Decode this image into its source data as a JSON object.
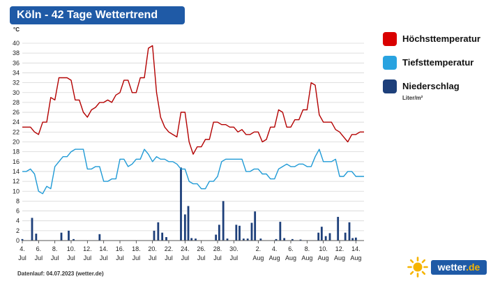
{
  "title": "Köln - 42 Tage Wettertrend",
  "unit_label": "°C",
  "footer": "Datenlauf: 04.07.2023 (wetter.de)",
  "logo": {
    "text": "wetter",
    "suffix": ".de"
  },
  "legend": [
    {
      "label": "Höchsttemperatur",
      "color": "#d90000",
      "sub": ""
    },
    {
      "label": "Tiefsttemperatur",
      "color": "#29a3e0",
      "sub": ""
    },
    {
      "label": "Niederschlag",
      "color": "#1d3f7a",
      "sub": "Liter/m²"
    }
  ],
  "colors": {
    "max": "#b30000",
    "min": "#1f9ad6",
    "rain": "#1d3f7a",
    "title_bg": "#1f5aa6"
  },
  "chart_data": {
    "type": "line",
    "title": "Köln - 42 Tage Wettertrend",
    "ylabel": "°C",
    "ylim": [
      0,
      40
    ],
    "yticks": [
      0,
      2,
      4,
      6,
      8,
      10,
      12,
      14,
      16,
      18,
      20,
      22,
      24,
      26,
      28,
      30,
      32,
      34,
      36,
      38,
      40
    ],
    "grid": true,
    "legend_position": "right",
    "xlim": [
      4,
      46
    ],
    "x_ticks": [
      {
        "day": 4,
        "label": "4.",
        "month": "Jul"
      },
      {
        "day": 6,
        "label": "6.",
        "month": "Jul"
      },
      {
        "day": 8,
        "label": "8.",
        "month": "Jul"
      },
      {
        "day": 10,
        "label": "10.",
        "month": "Jul"
      },
      {
        "day": 12,
        "label": "12.",
        "month": "Jul"
      },
      {
        "day": 14,
        "label": "14.",
        "month": "Jul"
      },
      {
        "day": 16,
        "label": "16.",
        "month": "Jul"
      },
      {
        "day": 18,
        "label": "18.",
        "month": "Jul"
      },
      {
        "day": 20,
        "label": "20.",
        "month": "Jul"
      },
      {
        "day": 22,
        "label": "22.",
        "month": "Jul"
      },
      {
        "day": 24,
        "label": "24.",
        "month": "Jul"
      },
      {
        "day": 26,
        "label": "26.",
        "month": "Jul"
      },
      {
        "day": 28,
        "label": "28.",
        "month": "Jul"
      },
      {
        "day": 30,
        "label": "30.",
        "month": "Jul"
      },
      {
        "day": 33,
        "label": "2.",
        "month": "Aug"
      },
      {
        "day": 35,
        "label": "4.",
        "month": "Aug"
      },
      {
        "day": 37,
        "label": "6.",
        "month": "Aug"
      },
      {
        "day": 39,
        "label": "8.",
        "month": "Aug"
      },
      {
        "day": 41,
        "label": "10.",
        "month": "Aug"
      },
      {
        "day": 43,
        "label": "12.",
        "month": "Aug"
      },
      {
        "day": 45,
        "label": "14.",
        "month": "Aug"
      }
    ],
    "series": [
      {
        "name": "Höchsttemperatur",
        "x": [
          4,
          4.5,
          5,
          5.5,
          6,
          6.5,
          7,
          7.5,
          8,
          8.5,
          9,
          9.5,
          10,
          10.5,
          11,
          11.5,
          12,
          12.5,
          13,
          13.5,
          14,
          14.5,
          15,
          15.5,
          16,
          16.5,
          17,
          17.5,
          18,
          18.5,
          19,
          19.5,
          20,
          20.5,
          21,
          21.5,
          22,
          22.5,
          23,
          23.5,
          24,
          24.5,
          25,
          25.5,
          26,
          26.5,
          27,
          27.5,
          28,
          28.5,
          29,
          29.5,
          30,
          30.5,
          31,
          31.5,
          32,
          32.5,
          33,
          33.5,
          34,
          34.5,
          35,
          35.5,
          36,
          36.5,
          37,
          37.5,
          38,
          38.5,
          39,
          39.5,
          40,
          40.5,
          41,
          41.5,
          42,
          42.5,
          43,
          43.5,
          44,
          44.5,
          45,
          45.5,
          46
        ],
        "values": [
          23,
          23,
          23,
          22,
          21.5,
          24,
          24,
          29,
          28.5,
          33,
          33,
          33,
          32.5,
          28.5,
          28.5,
          26,
          25,
          26.5,
          27,
          28,
          28,
          28.5,
          28,
          29.5,
          30,
          32.5,
          32.5,
          30,
          30,
          33,
          33,
          39,
          39.5,
          30,
          25,
          23,
          22,
          21.5,
          21,
          26,
          26,
          20,
          17.5,
          19,
          19,
          20.5,
          20.5,
          24,
          24,
          23.5,
          23.5,
          23,
          23,
          22,
          22.5,
          21.5,
          21.5,
          22,
          22,
          20,
          20.5,
          23,
          23,
          26.5,
          26,
          23,
          23,
          24.5,
          24.5,
          26.5,
          26.5,
          32,
          31.5,
          25.5,
          24,
          24,
          24,
          22.5,
          22,
          21,
          20,
          21.5,
          21.5,
          22,
          22
        ]
      },
      {
        "name": "Tiefsttemperatur",
        "x": [
          4,
          4.5,
          5,
          5.5,
          6,
          6.5,
          7,
          7.5,
          8,
          8.5,
          9,
          9.5,
          10,
          10.5,
          11,
          11.5,
          12,
          12.5,
          13,
          13.5,
          14,
          14.5,
          15,
          15.5,
          16,
          16.5,
          17,
          17.5,
          18,
          18.5,
          19,
          19.5,
          20,
          20.5,
          21,
          21.5,
          22,
          22.5,
          23,
          23.5,
          24,
          24.5,
          25,
          25.5,
          26,
          26.5,
          27,
          27.5,
          28,
          28.5,
          29,
          29.5,
          30,
          30.5,
          31,
          31.5,
          32,
          32.5,
          33,
          33.5,
          34,
          34.5,
          35,
          35.5,
          36,
          36.5,
          37,
          37.5,
          38,
          38.5,
          39,
          39.5,
          40,
          40.5,
          41,
          41.5,
          42,
          42.5,
          43,
          43.5,
          44,
          44.5,
          45,
          45.5,
          46
        ],
        "values": [
          14,
          14,
          14.5,
          13.5,
          10,
          9.5,
          11,
          10.5,
          15,
          16,
          17,
          17,
          18,
          18.5,
          18.5,
          18.5,
          14.5,
          14.5,
          15,
          15,
          12,
          12,
          12.5,
          12.5,
          16.5,
          16.5,
          15,
          15.5,
          16.5,
          16.5,
          18.5,
          17.5,
          16,
          17,
          16.5,
          16.5,
          16,
          16,
          15.5,
          14.5,
          14.5,
          12,
          11.5,
          11.5,
          10.5,
          10.5,
          12,
          12,
          13,
          16,
          16.5,
          16.5,
          16.5,
          16.5,
          16.5,
          14,
          14,
          14.5,
          14.5,
          13.5,
          13.5,
          12.5,
          12.5,
          14.5,
          15,
          15.5,
          15,
          15,
          15.5,
          15.5,
          15,
          15,
          17,
          18.5,
          16,
          16,
          16,
          16.5,
          13,
          13,
          14,
          14,
          13,
          13,
          13
        ]
      },
      {
        "name": "Niederschlag",
        "x": [
          4,
          5.2,
          5.7,
          8.8,
          9.7,
          10.3,
          13.5,
          20.2,
          20.7,
          21.2,
          21.7,
          23.5,
          24.0,
          24.4,
          24.8,
          25.3,
          27.8,
          28.2,
          28.7,
          29.2,
          30.3,
          30.7,
          31.2,
          31.7,
          32.2,
          32.6,
          33.3,
          35.2,
          35.7,
          36.2,
          37.2,
          38.2,
          40.4,
          40.8,
          41.3,
          41.8,
          42.8,
          43.7,
          44.2,
          44.6,
          45.0
        ],
        "values": [
          0.3,
          4.6,
          1.4,
          1.6,
          2.0,
          0.3,
          1.3,
          2.0,
          3.7,
          1.6,
          0.7,
          14.8,
          5.3,
          7.0,
          0.5,
          0.4,
          1.2,
          3.2,
          8.0,
          0.4,
          3.2,
          3.0,
          0.4,
          0.4,
          3.6,
          5.9,
          0.4,
          0.3,
          3.8,
          0.5,
          0.3,
          0.2,
          1.6,
          2.8,
          0.9,
          1.5,
          4.8,
          1.6,
          3.7,
          0.5,
          0.6
        ]
      }
    ]
  }
}
